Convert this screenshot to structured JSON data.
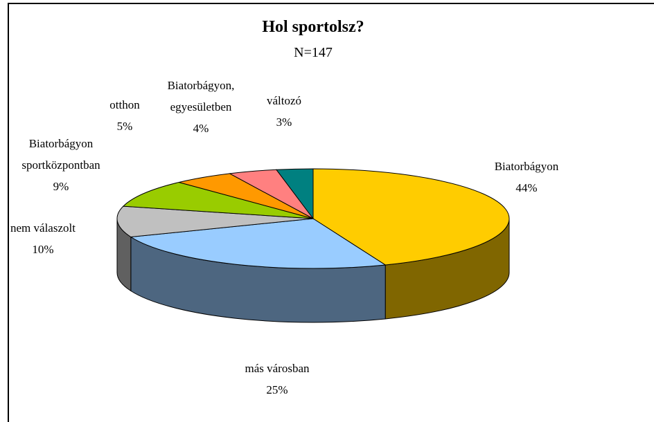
{
  "chart_data": {
    "type": "pie3d",
    "title": "Hol sportolsz?",
    "subtitle": "N=147",
    "categories": [
      "Biatorbágyon",
      "más városban",
      "nem válaszolt",
      "Biatorbágyon sportközpontban",
      "otthon",
      "Biatorbágyon, egyesületben",
      "változó"
    ],
    "values": [
      44,
      25,
      10,
      9,
      5,
      4,
      3
    ],
    "value_labels": [
      "44%",
      "25%",
      "10%",
      "9%",
      "5%",
      "4%",
      "3%"
    ],
    "colors": [
      "#FFCC00",
      "#99CCFF",
      "#C0C0C0",
      "#99CC00",
      "#FF9900",
      "#FF8080",
      "#008080"
    ]
  }
}
